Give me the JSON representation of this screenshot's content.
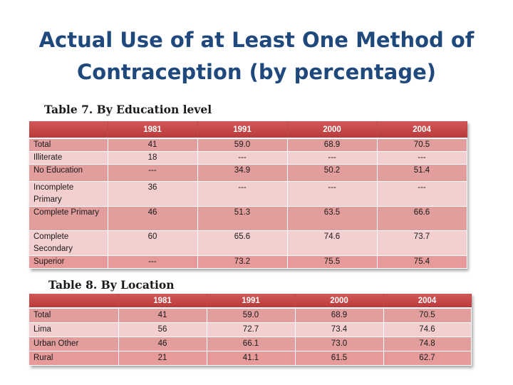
{
  "title_line1": "Actual Use of at Least One Method of",
  "title_line2": "Contraception (by percentage)",
  "table7": {
    "caption": "Table 7. By Education level",
    "headers": [
      "",
      "1981",
      "1991",
      "2000",
      "2004"
    ],
    "rows": [
      [
        "Total",
        "41",
        "59.0",
        "68.9",
        "70.5"
      ],
      [
        "Illiterate",
        "18",
        "---",
        "---",
        "---"
      ],
      [
        "No Education",
        "---",
        "34.9",
        "50.2",
        "51.4"
      ],
      [
        "Incomplete Primary",
        "36",
        "---",
        "---",
        "---"
      ],
      [
        "Complete Primary",
        "46",
        "51.3",
        "63.5",
        "66.6"
      ],
      [
        "Complete Secondary",
        "60",
        "65.6",
        "74.6",
        "73.7"
      ],
      [
        "Superior",
        "---",
        "73.2",
        "75.5",
        "75.4"
      ]
    ]
  },
  "table8": {
    "caption": "Table 8. By Location",
    "headers": [
      "",
      "1981",
      "1991",
      "2000",
      "2004"
    ],
    "rows": [
      [
        "Total",
        "41",
        "59.0",
        "68.9",
        "70.5"
      ],
      [
        "Lima",
        "56",
        "72.7",
        "73.4",
        "74.6"
      ],
      [
        "Urban Other",
        "46",
        "66.1",
        "73.0",
        "74.8"
      ],
      [
        "Rural",
        "21",
        "41.1",
        "61.5",
        "62.7"
      ]
    ]
  },
  "colors": {
    "title": "#1f497d",
    "header": "#c0504d",
    "row_dark": "#e29d9d",
    "row_light": "#f4cfcf"
  }
}
